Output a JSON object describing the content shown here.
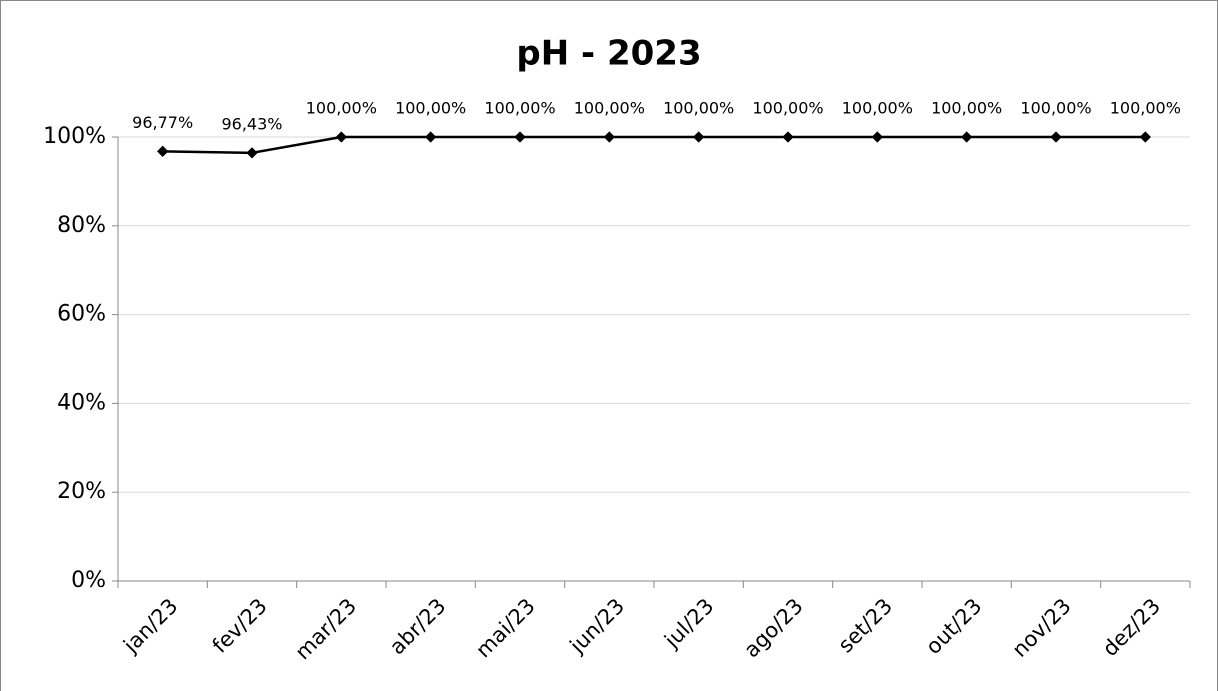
{
  "chart_data": {
    "type": "line",
    "title": "pH - 2023",
    "categories": [
      "jan/23",
      "fev/23",
      "mar/23",
      "abr/23",
      "mai/23",
      "jun/23",
      "jul/23",
      "ago/23",
      "set/23",
      "out/23",
      "nov/23",
      "dez/23"
    ],
    "values": [
      96.77,
      96.43,
      100,
      100,
      100,
      100,
      100,
      100,
      100,
      100,
      100,
      100
    ],
    "value_labels": [
      "96,77%",
      "96,43%",
      "100,00%",
      "100,00%",
      "100,00%",
      "100,00%",
      "100,00%",
      "100,00%",
      "100,00%",
      "100,00%",
      "100,00%",
      "100,00%"
    ],
    "color": "#000000",
    "ylim": [
      0,
      100
    ],
    "yticks": [
      {
        "value": 0,
        "label": "0%"
      },
      {
        "value": 20,
        "label": "20%"
      },
      {
        "value": 40,
        "label": "40%"
      },
      {
        "value": 60,
        "label": "60%"
      },
      {
        "value": 80,
        "label": "80%"
      },
      {
        "value": 100,
        "label": "100%"
      }
    ],
    "grid": true
  }
}
